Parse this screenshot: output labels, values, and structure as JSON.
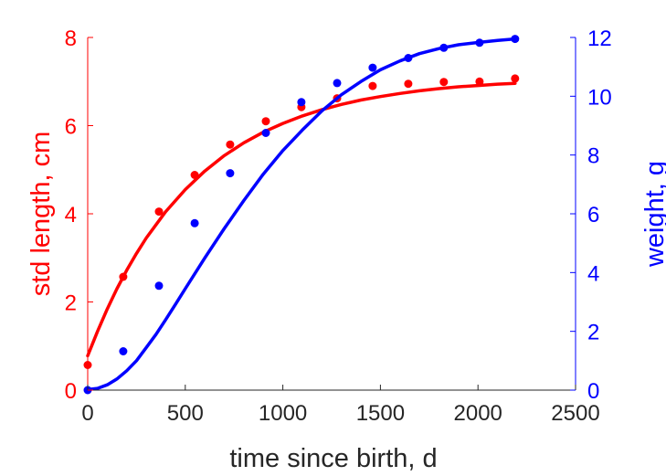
{
  "chart_data": {
    "type": "scatter",
    "xlabel": "time since birth, d",
    "ylabel_left": "std length, cm",
    "ylabel_right": "weight, g",
    "xlim": [
      0,
      2500
    ],
    "ylim_left": [
      0,
      8
    ],
    "ylim_right": [
      0,
      12
    ],
    "x_ticks": [
      0,
      500,
      1000,
      1500,
      2000,
      2500
    ],
    "y_left_ticks": [
      0,
      2,
      4,
      6,
      8
    ],
    "y_right_ticks": [
      0,
      2,
      4,
      6,
      8,
      10,
      12
    ],
    "grid": false,
    "colors": {
      "left": "#ff0000",
      "right": "#0000ff",
      "axis_x": "#262626"
    },
    "series": [
      {
        "name": "std length, cm",
        "axis": "left",
        "color": "#ff0000",
        "points": [
          [
            0,
            0.57
          ],
          [
            182,
            2.57
          ],
          [
            365,
            4.05
          ],
          [
            548,
            4.88
          ],
          [
            730,
            5.57
          ],
          [
            913,
            6.1
          ],
          [
            1095,
            6.42
          ],
          [
            1278,
            6.62
          ],
          [
            1460,
            6.9
          ],
          [
            1643,
            6.95
          ],
          [
            1825,
            6.99
          ],
          [
            2008,
            7.0
          ],
          [
            2190,
            7.07
          ]
        ],
        "fit": [
          [
            0,
            0.78
          ],
          [
            50,
            1.33
          ],
          [
            100,
            1.84
          ],
          [
            150,
            2.3
          ],
          [
            200,
            2.72
          ],
          [
            250,
            3.1
          ],
          [
            300,
            3.45
          ],
          [
            400,
            4.05
          ],
          [
            500,
            4.55
          ],
          [
            600,
            4.97
          ],
          [
            700,
            5.32
          ],
          [
            800,
            5.61
          ],
          [
            900,
            5.85
          ],
          [
            1000,
            6.05
          ],
          [
            1100,
            6.22
          ],
          [
            1200,
            6.36
          ],
          [
            1300,
            6.48
          ],
          [
            1400,
            6.58
          ],
          [
            1500,
            6.66
          ],
          [
            1600,
            6.73
          ],
          [
            1700,
            6.79
          ],
          [
            1800,
            6.84
          ],
          [
            1900,
            6.88
          ],
          [
            2000,
            6.91
          ],
          [
            2100,
            6.94
          ],
          [
            2190,
            6.96
          ]
        ]
      },
      {
        "name": "weight, g",
        "axis": "right",
        "color": "#0000ff",
        "points": [
          [
            0,
            0.0
          ],
          [
            182,
            1.32
          ],
          [
            365,
            3.55
          ],
          [
            548,
            5.68
          ],
          [
            730,
            7.38
          ],
          [
            913,
            8.75
          ],
          [
            1095,
            9.8
          ],
          [
            1278,
            10.45
          ],
          [
            1460,
            10.97
          ],
          [
            1643,
            11.3
          ],
          [
            1825,
            11.65
          ],
          [
            2008,
            11.82
          ],
          [
            2190,
            11.95
          ]
        ],
        "fit": [
          [
            0,
            0.02
          ],
          [
            50,
            0.06
          ],
          [
            100,
            0.18
          ],
          [
            150,
            0.38
          ],
          [
            200,
            0.66
          ],
          [
            250,
            1.0
          ],
          [
            300,
            1.45
          ],
          [
            350,
            1.9
          ],
          [
            400,
            2.4
          ],
          [
            450,
            2.92
          ],
          [
            500,
            3.45
          ],
          [
            600,
            4.5
          ],
          [
            700,
            5.5
          ],
          [
            800,
            6.45
          ],
          [
            900,
            7.35
          ],
          [
            1000,
            8.15
          ],
          [
            1100,
            8.85
          ],
          [
            1200,
            9.5
          ],
          [
            1300,
            10.05
          ],
          [
            1400,
            10.5
          ],
          [
            1500,
            10.9
          ],
          [
            1600,
            11.2
          ],
          [
            1700,
            11.45
          ],
          [
            1800,
            11.62
          ],
          [
            1900,
            11.75
          ],
          [
            2000,
            11.83
          ],
          [
            2100,
            11.9
          ],
          [
            2190,
            11.95
          ]
        ]
      }
    ]
  }
}
